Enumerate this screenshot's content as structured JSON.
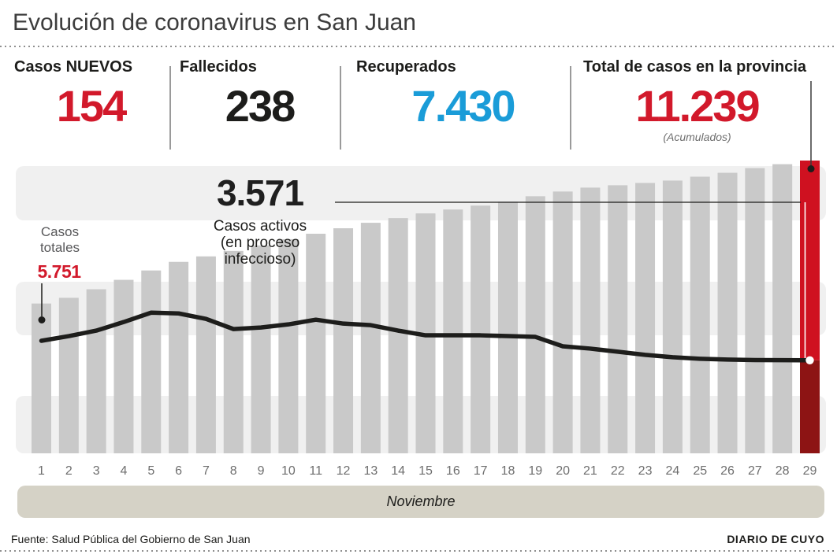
{
  "header": {
    "title": "Evolución de coronavirus en San Juan"
  },
  "stats": [
    {
      "label": "Casos NUEVOS",
      "value": "154",
      "color": "#d2192b"
    },
    {
      "label": "Fallecidos",
      "value": "238",
      "color": "#1d1d1b"
    },
    {
      "label": "Recuperados",
      "value": "7.430",
      "color": "#1a9cd8"
    },
    {
      "label": "Total de casos en la provincia",
      "value": "11.239",
      "note": "(Acumulados)",
      "color": "#d2192b"
    }
  ],
  "annotations": {
    "totales_label": "Casos\ntotales",
    "totales_value": "5.751",
    "activos_value": "3.571",
    "activos_label": "Casos activos\n(en proceso\ninfeccioso)"
  },
  "month_label": "Noviembre",
  "footer": {
    "source": "Fuente: Salud Pública del Gobierno de San Juan",
    "credit": "DIARIO DE CUYO"
  },
  "chart_data": {
    "type": "bar",
    "title": "Evolución de coronavirus en San Juan",
    "xlabel": "Noviembre",
    "ylabel": "",
    "ylim": [
      0,
      11239
    ],
    "grid": "horizontal-bands",
    "legend": "none",
    "categories": [
      1,
      2,
      3,
      4,
      5,
      6,
      7,
      8,
      9,
      10,
      11,
      12,
      13,
      14,
      15,
      16,
      17,
      18,
      19,
      20,
      21,
      22,
      23,
      24,
      25,
      26,
      27,
      28,
      29
    ],
    "series": [
      {
        "name": "Casos totales (acumulados)",
        "type": "bar",
        "values": [
          5751,
          5970,
          6300,
          6660,
          7020,
          7350,
          7560,
          7770,
          7980,
          8220,
          8430,
          8640,
          8850,
          9030,
          9210,
          9360,
          9510,
          9660,
          9870,
          10050,
          10200,
          10290,
          10380,
          10470,
          10620,
          10770,
          10950,
          11100,
          11239
        ]
      },
      {
        "name": "Casos activos (en proceso infeccioso)",
        "type": "line",
        "values": [
          4320,
          4500,
          4710,
          5040,
          5400,
          5370,
          5160,
          4770,
          4830,
          4950,
          5130,
          4980,
          4920,
          4710,
          4530,
          4530,
          4530,
          4500,
          4470,
          4110,
          4020,
          3900,
          3780,
          3690,
          3630,
          3600,
          3580,
          3575,
          3571
        ]
      }
    ],
    "highlight_day": 29,
    "colors": {
      "bar": "#c9c9c9",
      "bar_highlight_top": "#cf1120",
      "bar_highlight_bottom": "#8d1414",
      "line": "#1d1d1b",
      "band": "#f0f0f0",
      "accent_red": "#d2192b",
      "accent_blue": "#1a9cd8",
      "month_strip": "#d5d2c6"
    }
  }
}
